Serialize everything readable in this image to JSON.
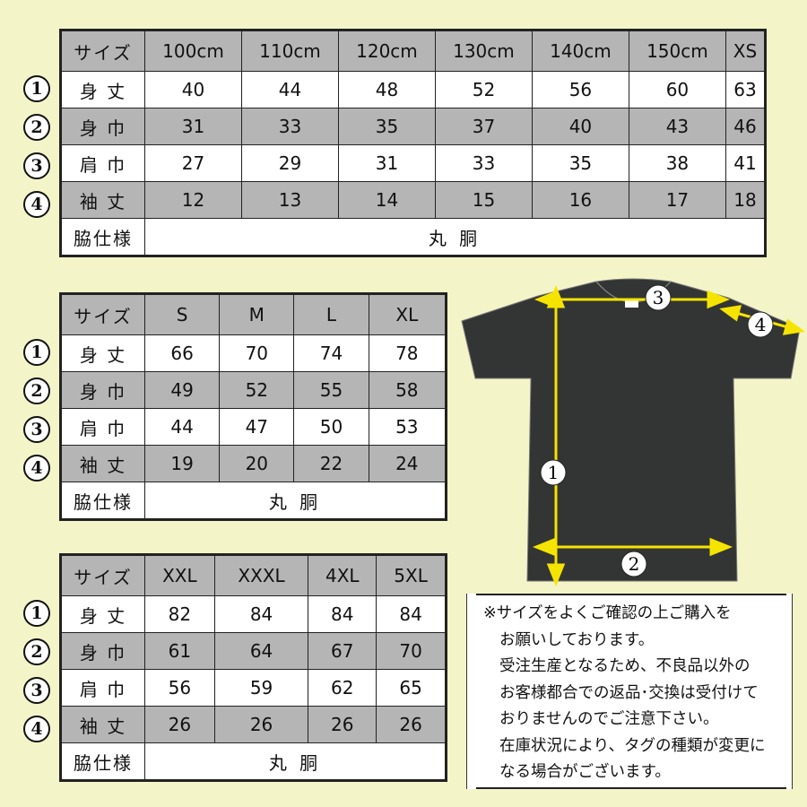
{
  "row_labels": [
    "身 丈",
    "身 巾",
    "肩 巾",
    "袖 丈"
  ],
  "row_markers": [
    "1",
    "2",
    "3",
    "4"
  ],
  "header_label": "サイズ",
  "side_label": "脇仕様",
  "side_value": "丸 胴",
  "tables": [
    {
      "sizes": [
        "100cm",
        "110cm",
        "120cm",
        "130cm",
        "140cm",
        "150cm",
        "XS"
      ],
      "rows": [
        [
          "40",
          "44",
          "48",
          "52",
          "56",
          "60",
          "63"
        ],
        [
          "31",
          "33",
          "35",
          "37",
          "40",
          "43",
          "46"
        ],
        [
          "27",
          "29",
          "31",
          "33",
          "35",
          "38",
          "41"
        ],
        [
          "12",
          "13",
          "14",
          "15",
          "16",
          "17",
          "18"
        ]
      ]
    },
    {
      "sizes": [
        "S",
        "M",
        "L",
        "XL"
      ],
      "rows": [
        [
          "66",
          "70",
          "74",
          "78"
        ],
        [
          "49",
          "52",
          "55",
          "58"
        ],
        [
          "44",
          "47",
          "50",
          "53"
        ],
        [
          "19",
          "20",
          "22",
          "24"
        ]
      ]
    },
    {
      "sizes": [
        "XXL",
        "XXXL",
        "4XL",
        "5XL"
      ],
      "rows": [
        [
          "82",
          "84",
          "84",
          "84"
        ],
        [
          "61",
          "64",
          "67",
          "70"
        ],
        [
          "56",
          "59",
          "62",
          "65"
        ],
        [
          "26",
          "26",
          "26",
          "26"
        ]
      ]
    }
  ],
  "note_lines": [
    "※サイズをよくご確認の上ご購入を",
    "お願いしております。",
    "受注生産となるため、不良品以外の",
    "お客様都合での返品･交換は受付けて",
    "おりませんのでご注意下さい。",
    "在庫状況により、タグの種類が変更に",
    "なる場合がございます。"
  ],
  "diagram_markers": [
    "1",
    "2",
    "3",
    "4"
  ],
  "colors": {
    "background": "#f4f4c9",
    "header_gray": "#b5b5b5",
    "shirt": "#333535",
    "arrow": "#f5e400"
  }
}
